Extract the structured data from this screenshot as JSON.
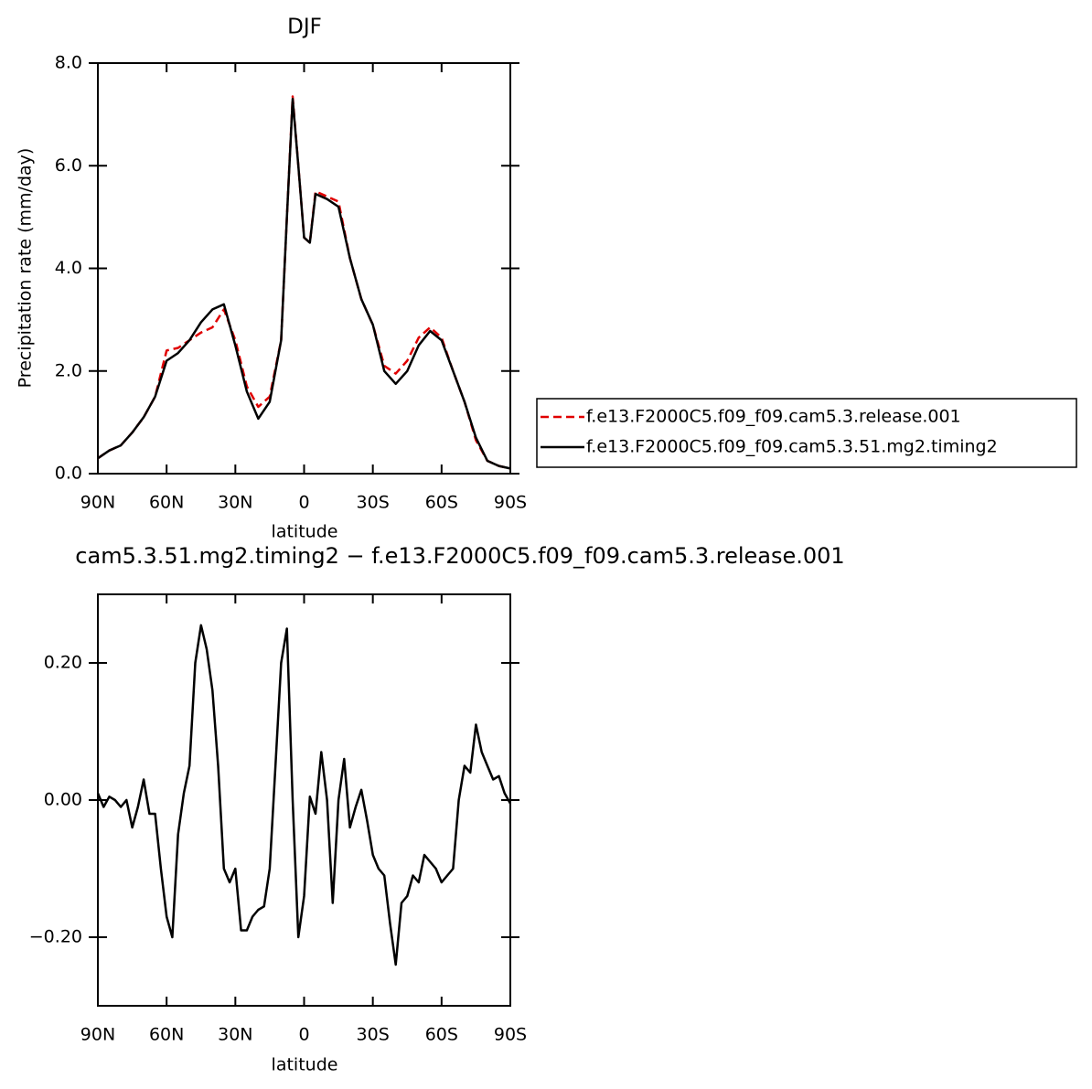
{
  "chart_data": [
    {
      "type": "line",
      "title": "DJF",
      "ylabel": "Precipitation rate (mm/day)",
      "xlabel": "latitude",
      "x": [
        90,
        85,
        80,
        75,
        70,
        65,
        60,
        55,
        50,
        45,
        40,
        35,
        30,
        25,
        20,
        15,
        10,
        7.5,
        5,
        2.5,
        0,
        -2.5,
        -5,
        -10,
        -15,
        -20,
        -25,
        -30,
        -35,
        -40,
        -45,
        -50,
        -55,
        -60,
        -65,
        -70,
        -75,
        -80,
        -85,
        -90
      ],
      "series": [
        {
          "name": "f.e13.F2000C5.f09_f09.cam5.3.release.001",
          "color": "#e00000",
          "dash": true,
          "values": [
            0.3,
            0.45,
            0.55,
            0.8,
            1.1,
            1.5,
            2.4,
            2.45,
            2.6,
            2.75,
            2.85,
            3.2,
            2.6,
            1.7,
            1.3,
            1.5,
            2.6,
            5.0,
            7.35,
            6.0,
            4.6,
            4.5,
            5.5,
            5.4,
            5.3,
            4.2,
            3.4,
            2.9,
            2.1,
            1.95,
            2.2,
            2.65,
            2.85,
            2.65,
            2.0,
            1.4,
            0.65,
            0.25,
            0.15,
            0.1
          ]
        },
        {
          "name": "f.e13.F2000C5.f09_f09.cam5.3.51.mg2.timing2",
          "color": "#000000",
          "dash": false,
          "values": [
            0.3,
            0.45,
            0.55,
            0.8,
            1.1,
            1.5,
            2.2,
            2.35,
            2.6,
            2.95,
            3.2,
            3.3,
            2.5,
            1.6,
            1.07,
            1.4,
            2.6,
            5.0,
            7.3,
            6.0,
            4.6,
            4.5,
            5.45,
            5.35,
            5.2,
            4.2,
            3.4,
            2.9,
            2.0,
            1.75,
            2.0,
            2.5,
            2.78,
            2.6,
            2.0,
            1.4,
            0.7,
            0.25,
            0.15,
            0.1
          ]
        }
      ],
      "xlim": [
        90,
        -90
      ],
      "xticks": [
        {
          "value": 90,
          "label": "90N"
        },
        {
          "value": 60,
          "label": "60N"
        },
        {
          "value": 30,
          "label": "30N"
        },
        0,
        {
          "value": -30,
          "label": "30S"
        },
        {
          "value": -60,
          "label": "60S"
        },
        {
          "value": -90,
          "label": "90S"
        }
      ],
      "ylim": [
        0,
        8
      ],
      "yticks": [
        {
          "value": 0,
          "label": "0.0"
        },
        {
          "value": 2,
          "label": "2.0"
        },
        {
          "value": 4,
          "label": "4.0"
        },
        {
          "value": 6,
          "label": "6.0"
        },
        {
          "value": 8,
          "label": "8.0"
        }
      ],
      "legend": "right"
    },
    {
      "type": "line",
      "title": "cam5.3.51.mg2.timing2 − f.e13.F2000C5.f09_f09.cam5.3.release.001",
      "xlabel": "latitude",
      "x": [
        90,
        87.5,
        85,
        82.5,
        80,
        77.5,
        75,
        72.5,
        70,
        67.5,
        65,
        62.5,
        60,
        57.5,
        55,
        52.5,
        50,
        47.5,
        45,
        42.5,
        40,
        37.5,
        35,
        32.5,
        30,
        27.5,
        25,
        22.5,
        20,
        17.5,
        15,
        12.5,
        10,
        7.5,
        5,
        2.5,
        0,
        -2.5,
        -5,
        -7.5,
        -10,
        -12.5,
        -15,
        -17.5,
        -20,
        -22.5,
        -25,
        -27.5,
        -30,
        -32.5,
        -35,
        -37.5,
        -40,
        -42.5,
        -45,
        -47.5,
        -50,
        -52.5,
        -55,
        -57.5,
        -60,
        -62.5,
        -65,
        -67.5,
        -70,
        -72.5,
        -75,
        -77.5,
        -80,
        -82.5,
        -85,
        -87.5,
        -90
      ],
      "series": [
        {
          "color": "#000000",
          "dash": false,
          "values": [
            0.01,
            -0.01,
            0.005,
            0.0,
            -0.01,
            0.0,
            -0.04,
            -0.01,
            0.03,
            -0.02,
            -0.02,
            -0.1,
            -0.17,
            -0.2,
            -0.05,
            0.01,
            0.05,
            0.2,
            0.255,
            0.22,
            0.16,
            0.05,
            -0.1,
            -0.12,
            -0.1,
            -0.19,
            -0.19,
            -0.17,
            -0.16,
            -0.155,
            -0.1,
            0.05,
            0.2,
            0.25,
            0.0,
            -0.2,
            -0.14,
            0.005,
            -0.02,
            0.07,
            0.0,
            -0.15,
            0.0,
            0.06,
            -0.04,
            -0.01,
            0.015,
            -0.03,
            -0.08,
            -0.1,
            -0.11,
            -0.18,
            -0.24,
            -0.15,
            -0.14,
            -0.11,
            -0.12,
            -0.08,
            -0.09,
            -0.1,
            -0.12,
            -0.11,
            -0.1,
            0.0,
            0.05,
            0.04,
            0.11,
            0.07,
            0.05,
            0.03,
            0.035,
            0.01,
            -0.005
          ]
        }
      ],
      "xlim": [
        90,
        -90
      ],
      "xticks": [
        {
          "value": 90,
          "label": "90N"
        },
        {
          "value": 60,
          "label": "60N"
        },
        {
          "value": 30,
          "label": "30N"
        },
        0,
        {
          "value": -30,
          "label": "30S"
        },
        {
          "value": -60,
          "label": "60S"
        },
        {
          "value": -90,
          "label": "90S"
        }
      ],
      "ylim": [
        -0.3,
        0.3
      ],
      "yticks": [
        {
          "value": -0.2,
          "label": "−0.20"
        },
        {
          "value": 0,
          "label": "0.00"
        },
        {
          "value": 0.2,
          "label": "0.20"
        }
      ]
    }
  ]
}
